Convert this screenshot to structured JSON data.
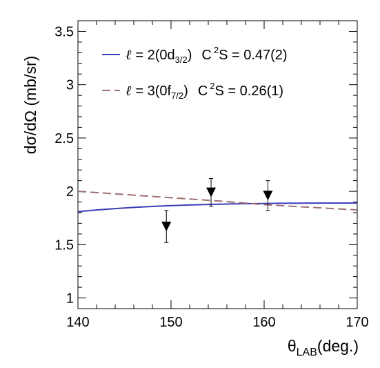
{
  "chart_data": {
    "type": "line",
    "xlabel": {
      "main": "θ",
      "sub": "LAB",
      "tail": "(deg.)"
    },
    "ylabel": "dσ/dΩ (mb/sr)",
    "xlim": [
      140,
      170
    ],
    "ylim": [
      0.9,
      3.6
    ],
    "x_ticks": [
      140,
      150,
      160,
      170
    ],
    "x_tick_labels": [
      "140",
      "150",
      "160",
      "170"
    ],
    "y_ticks": [
      1,
      1.5,
      2,
      2.5,
      3,
      3.5
    ],
    "y_tick_labels": [
      "1",
      "1.5",
      "2",
      "2.5",
      "3",
      "3.5"
    ],
    "grid": false,
    "legend_position": "top-left",
    "series": [
      {
        "name": "ℓ = 2(0d3/2)  C2S = 0.47(2)",
        "legend": {
          "l": "2",
          "orbital": "0d",
          "j": "3/2",
          "c2s": "0.47(2)"
        },
        "style": "solid",
        "color": "#3a3ab8",
        "x": [
          140,
          142,
          144,
          146,
          148,
          150,
          152,
          154,
          156,
          158,
          160,
          162,
          164,
          166,
          168,
          170
        ],
        "y": [
          1.81,
          1.825,
          1.838,
          1.849,
          1.858,
          1.866,
          1.872,
          1.877,
          1.881,
          1.884,
          1.886,
          1.888,
          1.889,
          1.89,
          1.89,
          1.89
        ]
      },
      {
        "name": "ℓ = 3(0f7/2)  C2S = 0.26(1)",
        "legend": {
          "l": "3",
          "orbital": "0f",
          "j": "7/2",
          "c2s": "0.26(1)"
        },
        "style": "dashed",
        "color": "#9b6f6f",
        "x": [
          140,
          145,
          150,
          155,
          160,
          165,
          170
        ],
        "y": [
          2.0,
          1.97,
          1.94,
          1.91,
          1.875,
          1.85,
          1.825
        ]
      },
      {
        "name": "data",
        "style": "points",
        "marker": "down-triangle",
        "color": "#000000",
        "x": [
          149.5,
          154.3,
          160.4
        ],
        "y": [
          1.67,
          1.99,
          1.96
        ],
        "yerr": [
          0.15,
          0.13,
          0.14
        ]
      }
    ]
  }
}
